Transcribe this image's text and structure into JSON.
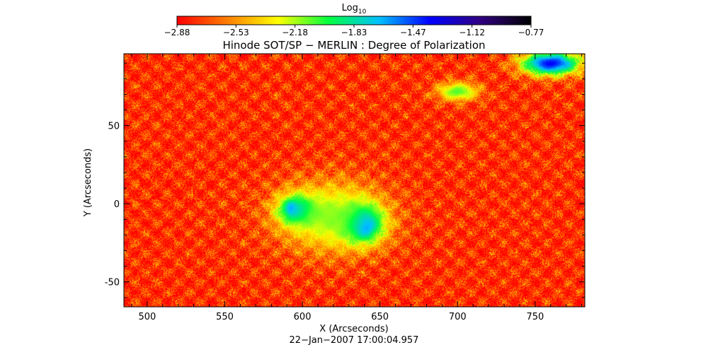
{
  "chart_data": {
    "type": "heatmap",
    "title": "Hinode SOT/SP − MERLIN : Degree of Polarization",
    "xlabel": "X (Arcseconds)",
    "ylabel": "Y (Arcseconds)",
    "timestamp": "22−Jan−2007 17:00:04.957",
    "xlim": [
      485,
      782
    ],
    "ylim": [
      -66,
      96
    ],
    "x_ticks": [
      500,
      550,
      600,
      650,
      700,
      750
    ],
    "y_ticks": [
      -50,
      0,
      50
    ],
    "colorbar": {
      "label_base": "Log",
      "label_sub": "10",
      "min": -2.88,
      "max": -0.77,
      "ticks": [
        "−2.88",
        "−2.53",
        "−2.18",
        "−1.83",
        "−1.47",
        "−1.12",
        "−0.77"
      ],
      "colors": [
        "#ff0000",
        "#ff8000",
        "#ffff00",
        "#00ff40",
        "#00c0ff",
        "#0000ff",
        "#300080",
        "#000000"
      ]
    },
    "field": {
      "background_log_dp": -2.8,
      "features": [
        {
          "name": "leading sunspot umbra",
          "x": 593,
          "y": -3,
          "rx": 4,
          "ry": 5,
          "peak": -0.9
        },
        {
          "name": "leading sunspot penumbra",
          "x": 597,
          "y": -4,
          "rx": 16,
          "ry": 12,
          "peak": -1.15
        },
        {
          "name": "following sunspot umbra",
          "x": 640,
          "y": -14,
          "rx": 6,
          "ry": 7,
          "peak": -0.8
        },
        {
          "name": "following sunspot penumbra",
          "x": 638,
          "y": -12,
          "rx": 18,
          "ry": 16,
          "peak": -1.1
        },
        {
          "name": "active region plage",
          "x": 618,
          "y": -8,
          "rx": 45,
          "ry": 30,
          "peak": -2.1
        },
        {
          "name": "network patch NE",
          "x": 760,
          "y": 90,
          "rx": 25,
          "ry": 10,
          "peak": -1.25
        },
        {
          "name": "network patch E",
          "x": 700,
          "y": 72,
          "rx": 18,
          "ry": 8,
          "peak": -2.0
        }
      ]
    }
  }
}
